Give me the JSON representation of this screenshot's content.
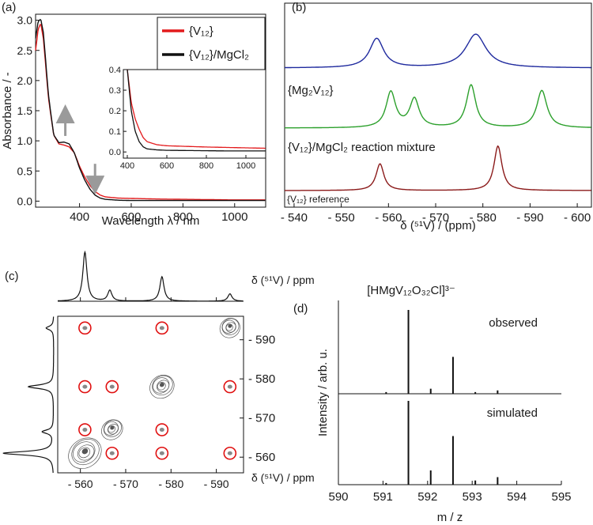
{
  "chart_data": [
    {
      "panel": "(a)",
      "type": "line",
      "xlabel": "Wavelength λ / nm",
      "ylabel": "Absorbance / -",
      "xlim": [
        230,
        1120
      ],
      "ylim": [
        -0.1,
        3.1
      ],
      "xticks": [
        "400",
        "600",
        "800",
        "1000"
      ],
      "yticks": [
        "0.0",
        "0.5",
        "1.0",
        "1.5",
        "2.0",
        "2.5",
        "3.0"
      ],
      "legend": {
        "position": "top-right",
        "entries": [
          "{V₁₂}",
          "{V₁₂}/MgCl₂"
        ]
      },
      "series": [
        {
          "name": "{V₁₂}",
          "color": "#e31a1c",
          "x": [
            230,
            240,
            250,
            260,
            280,
            300,
            320,
            340,
            360,
            380,
            400,
            420,
            440,
            460,
            480,
            500,
            550,
            600,
            700,
            800,
            900,
            1000,
            1120
          ],
          "y": [
            2.5,
            2.85,
            2.95,
            2.7,
            1.7,
            1.1,
            0.95,
            0.93,
            0.9,
            0.8,
            0.58,
            0.4,
            0.26,
            0.16,
            0.1,
            0.07,
            0.05,
            0.045,
            0.035,
            0.03,
            0.025,
            0.02,
            0.02
          ]
        },
        {
          "name": "{V₁₂}/MgCl₂",
          "color": "#111111",
          "x": [
            230,
            240,
            250,
            260,
            280,
            300,
            320,
            340,
            360,
            380,
            400,
            420,
            440,
            460,
            480,
            500,
            550,
            600,
            700,
            800,
            900,
            1000,
            1120
          ],
          "y": [
            2.7,
            2.98,
            3.02,
            2.8,
            1.75,
            1.1,
            0.97,
            0.98,
            0.95,
            0.8,
            0.55,
            0.35,
            0.2,
            0.1,
            0.05,
            0.03,
            0.015,
            0.01,
            0.01,
            0.01,
            0.01,
            0.01,
            0.01
          ]
        }
      ],
      "annotations": [
        "arrow up at ~345 nm",
        "arrow down at ~460 nm"
      ],
      "inset": {
        "xlim": [
          380,
          1100
        ],
        "ylim": [
          -0.03,
          0.4
        ],
        "xticks": [
          "400",
          "600",
          "800",
          "1000"
        ],
        "yticks": [
          "0.0",
          "0.1",
          "0.2",
          "0.3",
          "0.4"
        ],
        "series": [
          {
            "name": "{V₁₂}",
            "x": [
              400,
              420,
              440,
              460,
              480,
              500,
              550,
              600,
              700,
              800,
              900,
              1000,
              1100
            ],
            "y": [
              0.4,
              0.24,
              0.16,
              0.11,
              0.07,
              0.05,
              0.035,
              0.03,
              0.027,
              0.024,
              0.022,
              0.02,
              0.018
            ]
          },
          {
            "name": "{V₁₂}/MgCl₂",
            "x": [
              400,
              420,
              440,
              460,
              480,
              500,
              550,
              600,
              700,
              800,
              900,
              1000,
              1100
            ],
            "y": [
              0.4,
              0.2,
              0.1,
              0.05,
              0.025,
              0.015,
              0.01,
              0.008,
              0.007,
              0.006,
              0.005,
              0.005,
              0.005
            ]
          }
        ]
      }
    },
    {
      "panel": "(b)",
      "type": "line",
      "xlabel": "δ (⁵¹V) / (ppm)",
      "xlim": [
        -538,
        -603
      ],
      "xticks": [
        "- 540",
        "- 550",
        "- 560",
        "- 570",
        "- 580",
        "- 590",
        "- 600"
      ],
      "series": [
        {
          "name": "top trace",
          "color": "#1f2a9e",
          "peaks": [
            {
              "ppm": -557.5,
              "height": 1.0,
              "width": 1.8
            },
            {
              "ppm": -578.5,
              "height": 1.15,
              "width": 2.6
            }
          ]
        },
        {
          "name": "{Mg₂V₁₂}",
          "color": "#2ca02c",
          "peaks": [
            {
              "ppm": -560.5,
              "height": 1.0,
              "width": 1.2
            },
            {
              "ppm": -565.5,
              "height": 0.8,
              "width": 1.2
            },
            {
              "ppm": -577.5,
              "height": 1.2,
              "width": 1.2
            },
            {
              "ppm": -592.5,
              "height": 1.05,
              "width": 1.3
            }
          ]
        },
        {
          "name": "{V₁₂}/MgCl₂ reaction mixture",
          "color": "#8b1a1a",
          "peaks": [
            {
              "ppm": -558.2,
              "height": 0.75,
              "width": 1.0
            },
            {
              "ppm": -583.2,
              "height": 1.25,
              "width": 1.0
            }
          ]
        }
      ],
      "labels": [
        "{Mg₂V₁₂}",
        "{V₁₂}/MgCl₂ reaction mixture",
        "{V₁₂} reference"
      ]
    },
    {
      "panel": "(c)",
      "type": "heatmap",
      "xlabel": "δ (⁵¹V) / ppm",
      "ylabel": "δ (⁵¹V) / ppm",
      "xlim": [
        -555,
        -596
      ],
      "ylim": [
        -556,
        -596
      ],
      "xticks": [
        "- 560",
        "- 570",
        "- 580",
        "- 590"
      ],
      "yticks": [
        "- 590",
        "- 580",
        "- 570",
        "- 560"
      ],
      "projection_peaks": [
        {
          "ppm": -561,
          "height": 1.0
        },
        {
          "ppm": -566.5,
          "height": 0.22
        },
        {
          "ppm": -578,
          "height": 0.5
        },
        {
          "ppm": -593,
          "height": 0.15
        }
      ],
      "diagonal_peaks": [
        [
          -561,
          -561
        ],
        [
          -567,
          -567
        ],
        [
          -578,
          -578
        ],
        [
          -593,
          -593
        ]
      ],
      "cross_peaks_circled": [
        [
          -561,
          -593
        ],
        [
          -578,
          -593
        ],
        [
          -561,
          -578
        ],
        [
          -567,
          -578
        ],
        [
          -593,
          -578
        ],
        [
          -561,
          -567
        ],
        [
          -578,
          -567
        ],
        [
          -567,
          -561
        ],
        [
          -578,
          -561
        ],
        [
          -593,
          -561
        ]
      ]
    },
    {
      "panel": "(d)",
      "type": "bar",
      "title": "[HMgV₁₂O₃₂Cl]³⁻",
      "xlabel": "m / z",
      "ylabel": "Intensity / arb. u.",
      "xlim": [
        590,
        595
      ],
      "xticks": [
        "590",
        "591",
        "592",
        "593",
        "594",
        "595"
      ],
      "series": [
        {
          "name": "observed",
          "x": [
            591.07,
            591.57,
            592.07,
            592.57,
            593.07,
            593.57
          ],
          "values": [
            0.02,
            1.0,
            0.06,
            0.44,
            0.02,
            0.04
          ]
        },
        {
          "name": "simulated",
          "x": [
            591.07,
            591.57,
            592.07,
            592.57,
            593.07,
            593.57
          ],
          "values": [
            0.02,
            1.0,
            0.17,
            0.58,
            0.05,
            0.09
          ]
        }
      ]
    }
  ],
  "panel_labels": [
    "(a)",
    "(b)",
    "(c)",
    "(d)"
  ]
}
